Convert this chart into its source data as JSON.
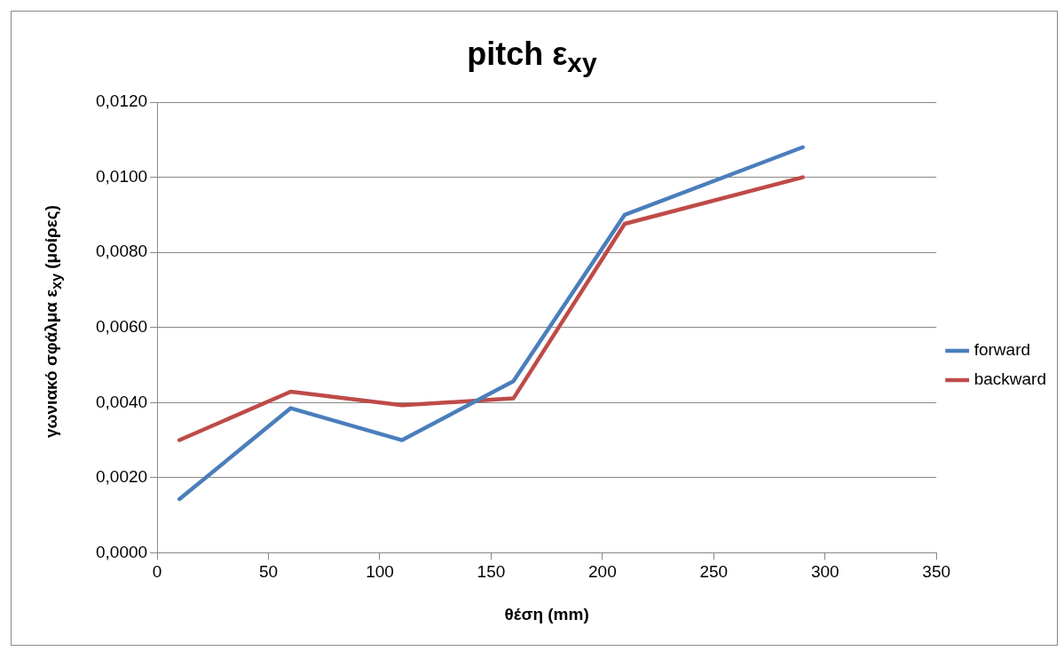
{
  "chart_data": {
    "type": "line",
    "title": "pitch ε$_{xy}$",
    "xlabel": "θέση (mm)",
    "ylabel": "γωνιακό σφάλμα ε$_{xy}$ (μοίρες)",
    "x": [
      10,
      60,
      110,
      160,
      210,
      290
    ],
    "series": [
      {
        "name": "forward",
        "color": "#4a7ebb",
        "values": [
          0.00143,
          0.00385,
          0.003,
          0.00457,
          0.009,
          0.0108
        ]
      },
      {
        "name": "backward",
        "color": "#be4b48",
        "values": [
          0.003,
          0.00429,
          0.00393,
          0.00411,
          0.00876,
          0.01
        ]
      }
    ],
    "xlim": [
      0,
      350
    ],
    "xticks": [
      0,
      50,
      100,
      150,
      200,
      250,
      300,
      350
    ],
    "ylim": [
      0,
      0.012
    ],
    "yticks": [
      {
        "value": 0,
        "label": "0,0000"
      },
      {
        "value": 0.002,
        "label": "0,0020"
      },
      {
        "value": 0.004,
        "label": "0,0040"
      },
      {
        "value": 0.006,
        "label": "0,0060"
      },
      {
        "value": 0.008,
        "label": "0,0080"
      },
      {
        "value": 0.01,
        "label": "0,0100"
      },
      {
        "value": 0.012,
        "label": "0,0120"
      }
    ],
    "grid": "y",
    "legend": "right",
    "marker": "none",
    "line_style": "solid"
  }
}
